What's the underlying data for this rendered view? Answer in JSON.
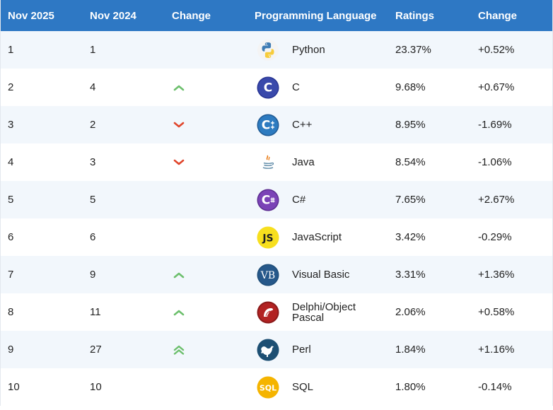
{
  "header": {
    "col_rank_current": "Nov 2025",
    "col_rank_previous": "Nov 2024",
    "col_change": "Change",
    "col_language": "Programming Language",
    "col_ratings": "Ratings",
    "col_delta": "Change"
  },
  "rows": [
    {
      "rank_current": "1",
      "rank_previous": "1",
      "trend": "none",
      "icon": "python-logo-icon",
      "language": "Python",
      "rating": "23.37%",
      "delta": "+0.52%"
    },
    {
      "rank_current": "2",
      "rank_previous": "4",
      "trend": "up",
      "icon": "c-logo-icon",
      "language": "C",
      "rating": "9.68%",
      "delta": "+0.67%"
    },
    {
      "rank_current": "3",
      "rank_previous": "2",
      "trend": "down",
      "icon": "cpp-logo-icon",
      "language": "C++",
      "rating": "8.95%",
      "delta": "-1.69%"
    },
    {
      "rank_current": "4",
      "rank_previous": "3",
      "trend": "down",
      "icon": "java-logo-icon",
      "language": "Java",
      "rating": "8.54%",
      "delta": "-1.06%"
    },
    {
      "rank_current": "5",
      "rank_previous": "5",
      "trend": "none",
      "icon": "csharp-logo-icon",
      "language": "C#",
      "rating": "7.65%",
      "delta": "+2.67%"
    },
    {
      "rank_current": "6",
      "rank_previous": "6",
      "trend": "none",
      "icon": "javascript-logo-icon",
      "language": "JavaScript",
      "rating": "3.42%",
      "delta": "-0.29%"
    },
    {
      "rank_current": "7",
      "rank_previous": "9",
      "trend": "up",
      "icon": "visual-basic-logo-icon",
      "language": "Visual Basic",
      "rating": "3.31%",
      "delta": "+1.36%"
    },
    {
      "rank_current": "8",
      "rank_previous": "11",
      "trend": "up",
      "icon": "delphi-logo-icon",
      "language": "Delphi/Object Pascal",
      "rating": "2.06%",
      "delta": "+0.58%"
    },
    {
      "rank_current": "9",
      "rank_previous": "27",
      "trend": "double-up",
      "icon": "perl-logo-icon",
      "language": "Perl",
      "rating": "1.84%",
      "delta": "+1.16%"
    },
    {
      "rank_current": "10",
      "rank_previous": "10",
      "trend": "none",
      "icon": "sql-logo-icon",
      "language": "SQL",
      "rating": "1.80%",
      "delta": "-0.14%"
    }
  ],
  "colors": {
    "header_bg": "#2e78c4",
    "row_alt_bg": "#f2f7fc",
    "trend_up": "#6cbf6c",
    "trend_down": "#e0452b"
  },
  "logo_text": {
    "c": "C",
    "cpp": "C",
    "csharp": "C",
    "javascript": "JS",
    "visual_basic": "VB",
    "sql": "SQL"
  }
}
